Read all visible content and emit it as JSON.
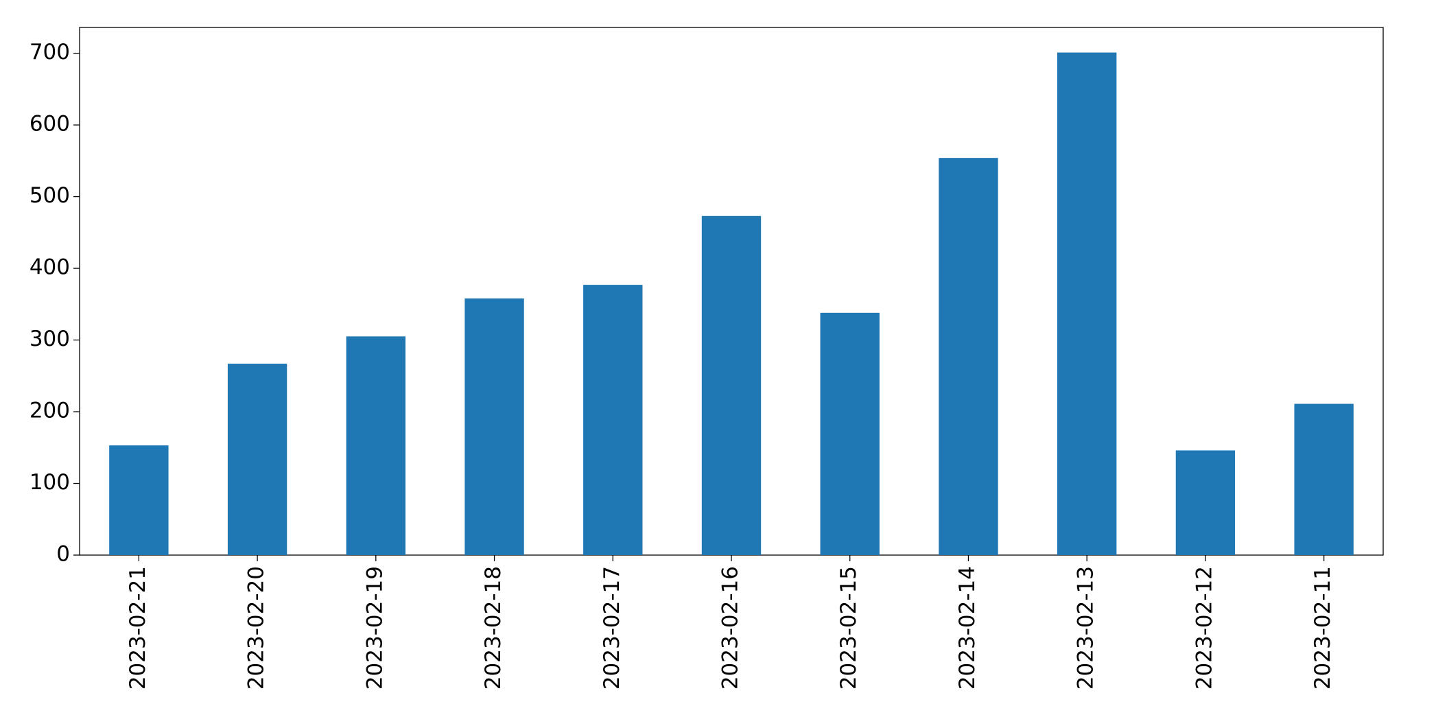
{
  "chart_data": {
    "type": "bar",
    "categories": [
      "2023-02-21",
      "2023-02-20",
      "2023-02-19",
      "2023-02-18",
      "2023-02-17",
      "2023-02-16",
      "2023-02-15",
      "2023-02-14",
      "2023-02-13",
      "2023-02-12",
      "2023-02-11"
    ],
    "values": [
      153,
      267,
      305,
      358,
      377,
      473,
      338,
      554,
      701,
      146,
      211
    ],
    "color": "#1f77b4",
    "ylim": [
      0,
      736
    ],
    "yticks": [
      0,
      100,
      200,
      300,
      400,
      500,
      600,
      700
    ],
    "grid": false
  }
}
